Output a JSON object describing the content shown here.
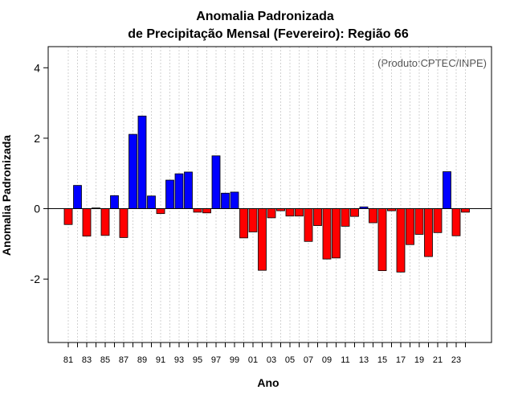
{
  "chart_data": {
    "type": "bar",
    "title": "Anomalia Padronizada",
    "subtitle": "de Precipitação Mensal (Fevereiro): Região 66",
    "xlabel": "Ano",
    "ylabel": "Anomalia Padronizada",
    "annotation": "(Produto:CPTEC/INPE)",
    "ylim": [
      -3.8,
      4.6
    ],
    "yticks": [
      -2,
      0,
      2,
      4
    ],
    "ytick_labels": [
      "-2",
      "0",
      "2",
      "4"
    ],
    "grid": "vertical-dotted",
    "positive_color": "#0000ff",
    "negative_color": "#ff0000",
    "categories": [
      "1981",
      "1982",
      "1983",
      "1984",
      "1985",
      "1986",
      "1987",
      "1988",
      "1989",
      "1990",
      "1991",
      "1992",
      "1993",
      "1994",
      "1995",
      "1996",
      "1997",
      "1998",
      "1999",
      "2000",
      "2001",
      "2002",
      "2003",
      "2004",
      "2005",
      "2006",
      "2007",
      "2008",
      "2009",
      "2010",
      "2011",
      "2012",
      "2013",
      "2014",
      "2015",
      "2016",
      "2017",
      "2018",
      "2019",
      "2020",
      "2021",
      "2022",
      "2023",
      "2024"
    ],
    "xtick_labels": [
      "81",
      "",
      "83",
      "",
      "85",
      "",
      "87",
      "",
      "89",
      "",
      "91",
      "",
      "93",
      "",
      "95",
      "",
      "97",
      "",
      "99",
      "",
      "01",
      "",
      "03",
      "",
      "05",
      "",
      "07",
      "",
      "09",
      "",
      "11",
      "",
      "13",
      "",
      "15",
      "",
      "17",
      "",
      "19",
      "",
      "21",
      "",
      "23",
      ""
    ],
    "values": [
      -0.45,
      0.66,
      -0.78,
      0.02,
      -0.76,
      0.37,
      -0.82,
      2.11,
      2.63,
      0.36,
      -0.14,
      0.81,
      0.99,
      1.04,
      -0.1,
      -0.12,
      1.5,
      0.44,
      0.47,
      -0.83,
      -0.66,
      -1.75,
      -0.26,
      -0.06,
      -0.21,
      -0.21,
      -0.93,
      -0.48,
      -1.43,
      -1.4,
      -0.5,
      -0.22,
      0.05,
      -0.4,
      -1.76,
      -0.06,
      -1.8,
      -1.02,
      -0.73,
      -1.36,
      -0.68,
      1.05,
      -0.77,
      -0.1
    ]
  }
}
